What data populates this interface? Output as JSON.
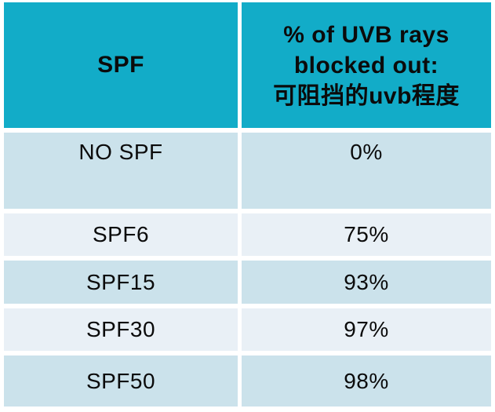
{
  "colors": {
    "header-bg": "#12ACC8",
    "row-dark": "#CBE2EB",
    "row-light": "#E9F0F6",
    "text": "#0b0b0b",
    "page-bg": "#ffffff"
  },
  "table": {
    "header": {
      "col1": "SPF",
      "col2_lines": [
        "% of UVB rays",
        "blocked out:",
        "可阻挡的uvb程度"
      ]
    },
    "rows": [
      {
        "spf": "NO SPF",
        "blocked": "0%"
      },
      {
        "spf": "SPF6",
        "blocked": "75%"
      },
      {
        "spf": "SPF15",
        "blocked": "93%"
      },
      {
        "spf": "SPF30",
        "blocked": "97%"
      },
      {
        "spf": "SPF50",
        "blocked": "98%"
      }
    ]
  },
  "chart_data": {
    "type": "table",
    "title": "",
    "columns": [
      "SPF",
      "% of UVB rays blocked out: 可阻挡的uvb程度"
    ],
    "categories": [
      "NO SPF",
      "SPF6",
      "SPF15",
      "SPF30",
      "SPF50"
    ],
    "values_percent_uvb_blocked": [
      0,
      75,
      93,
      97,
      98
    ]
  }
}
